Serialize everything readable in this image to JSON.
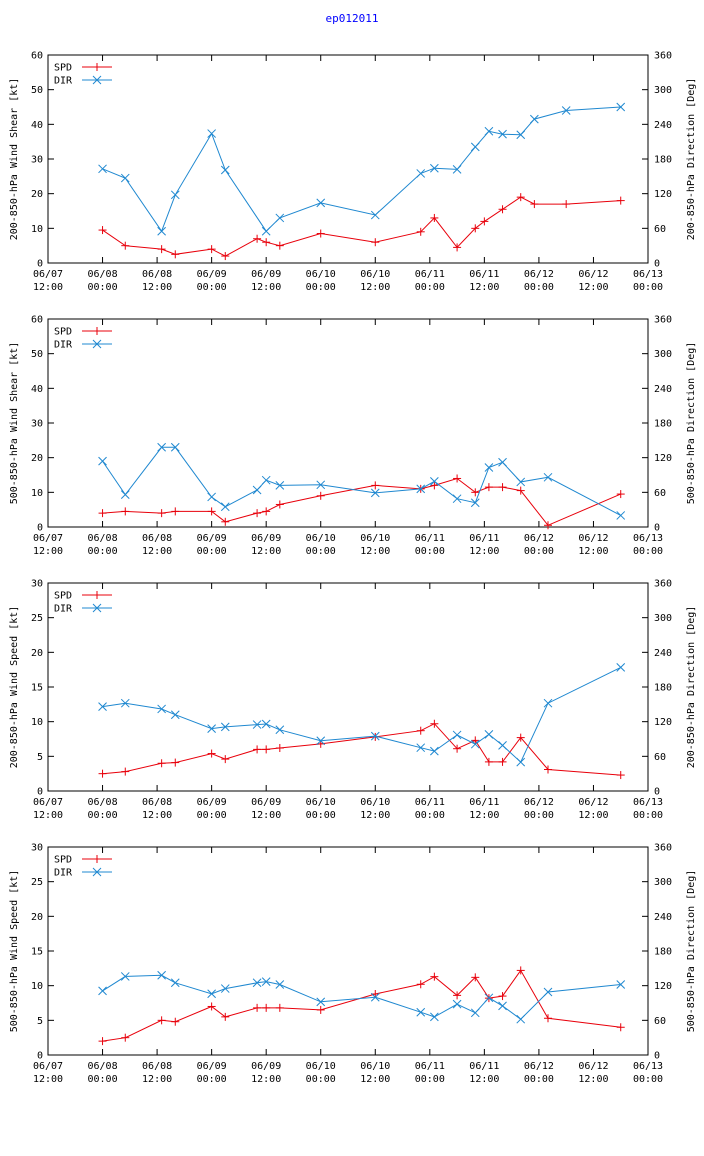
{
  "page": {
    "title": "ep012011"
  },
  "colors": {
    "spd": "#e8000b",
    "dir": "#1f88d0",
    "axis": "#000000"
  },
  "x_ticks": [
    "06/07\n12:00",
    "06/08\n00:00",
    "06/08\n12:00",
    "06/09\n00:00",
    "06/09\n12:00",
    "06/10\n00:00",
    "06/10\n12:00",
    "06/11\n00:00",
    "06/11\n12:00",
    "06/12\n00:00",
    "06/12\n12:00",
    "06/13\n00:00"
  ],
  "chart_data": [
    {
      "type": "line",
      "title": "",
      "ylabel": "200-850-hPa Wind Shear [kt]",
      "y2label": "200-850-hPa Direction [Deg]",
      "xlim": [
        0,
        132
      ],
      "ylim": [
        0,
        60
      ],
      "y2lim": [
        0,
        360
      ],
      "yticks": [
        0,
        10,
        20,
        30,
        40,
        50,
        60
      ],
      "y2ticks": [
        0,
        60,
        120,
        180,
        240,
        300,
        360
      ],
      "legend": [
        "SPD",
        "DIR"
      ],
      "series": [
        {
          "name": "SPD",
          "axis": "left",
          "x": [
            12,
            17,
            25,
            28,
            36,
            39,
            46,
            48,
            51,
            60,
            72,
            82,
            85,
            90,
            94,
            96,
            100,
            104,
            107,
            114,
            126
          ],
          "values": [
            9.5,
            5,
            4,
            2.5,
            4,
            2,
            7,
            6,
            5,
            8.5,
            6,
            9,
            13,
            4.5,
            10,
            12,
            15.5,
            19,
            17,
            17,
            18
          ]
        },
        {
          "name": "DIR",
          "axis": "right",
          "x": [
            12,
            17,
            25,
            28,
            36,
            39,
            48,
            51,
            60,
            72,
            82,
            85,
            90,
            94,
            97,
            100,
            104,
            107,
            114,
            126
          ],
          "values": [
            163,
            147,
            55,
            118,
            224,
            161,
            55,
            78,
            104,
            83,
            155,
            164,
            162,
            201,
            228,
            223,
            222,
            249,
            264,
            270
          ]
        }
      ]
    },
    {
      "type": "line",
      "title": "",
      "ylabel": "500-850-hPa Wind Shear [kt]",
      "y2label": "500-850-hPa Direction [Deg]",
      "xlim": [
        0,
        132
      ],
      "ylim": [
        0,
        60
      ],
      "y2lim": [
        0,
        360
      ],
      "yticks": [
        0,
        10,
        20,
        30,
        40,
        50,
        60
      ],
      "y2ticks": [
        0,
        60,
        120,
        180,
        240,
        300,
        360
      ],
      "legend": [
        "SPD",
        "DIR"
      ],
      "series": [
        {
          "name": "SPD",
          "axis": "left",
          "x": [
            12,
            17,
            25,
            28,
            36,
            39,
            46,
            48,
            51,
            60,
            72,
            82,
            85,
            90,
            94,
            97,
            100,
            104,
            110,
            126
          ],
          "values": [
            4,
            4.5,
            4,
            4.5,
            4.5,
            1.5,
            4,
            4.5,
            6.5,
            9,
            12,
            11,
            12,
            14,
            10,
            11.5,
            11.5,
            10.5,
            0.5,
            9.5
          ]
        },
        {
          "name": "DIR",
          "axis": "right",
          "x": [
            12,
            17,
            25,
            28,
            36,
            39,
            46,
            48,
            51,
            60,
            72,
            82,
            85,
            90,
            94,
            97,
            100,
            104,
            110,
            126
          ],
          "values": [
            114,
            56,
            138,
            138,
            52,
            35,
            64,
            81,
            72,
            73,
            59,
            66,
            79,
            49,
            42,
            103,
            112,
            78,
            86,
            20
          ]
        }
      ]
    },
    {
      "type": "line",
      "title": "",
      "ylabel": "200-850-hPa Wind Speed [kt]",
      "y2label": "200-850-hPa Direction [Deg]",
      "xlim": [
        0,
        132
      ],
      "ylim": [
        0,
        30
      ],
      "y2lim": [
        0,
        360
      ],
      "yticks": [
        0,
        5,
        10,
        15,
        20,
        25,
        30
      ],
      "y2ticks": [
        0,
        60,
        120,
        180,
        240,
        300,
        360
      ],
      "legend": [
        "SPD",
        "DIR"
      ],
      "series": [
        {
          "name": "SPD",
          "axis": "left",
          "x": [
            12,
            17,
            25,
            28,
            36,
            39,
            46,
            48,
            51,
            60,
            72,
            82,
            85,
            90,
            94,
            97,
            100,
            104,
            110,
            126
          ],
          "values": [
            2.5,
            2.8,
            4,
            4.1,
            5.4,
            4.6,
            6,
            6,
            6.2,
            6.8,
            7.8,
            8.7,
            9.7,
            6.1,
            7.3,
            4.2,
            4.2,
            7.7,
            3.1,
            2.3
          ]
        },
        {
          "name": "DIR",
          "axis": "right",
          "x": [
            12,
            17,
            25,
            28,
            36,
            39,
            46,
            48,
            51,
            60,
            72,
            82,
            85,
            90,
            94,
            97,
            100,
            104,
            110,
            126
          ],
          "values": [
            146,
            152,
            142,
            132,
            108,
            111,
            115,
            116,
            106,
            87,
            95,
            75,
            69,
            97,
            81,
            98,
            79,
            50,
            152,
            214
          ]
        }
      ]
    },
    {
      "type": "line",
      "title": "",
      "ylabel": "500-850-hPa Wind Speed [kt]",
      "y2label": "500-850-hPa Direction [Deg]",
      "xlim": [
        0,
        132
      ],
      "ylim": [
        0,
        30
      ],
      "y2lim": [
        0,
        360
      ],
      "yticks": [
        0,
        5,
        10,
        15,
        20,
        25,
        30
      ],
      "y2ticks": [
        0,
        60,
        120,
        180,
        240,
        300,
        360
      ],
      "legend": [
        "SPD",
        "DIR"
      ],
      "series": [
        {
          "name": "SPD",
          "axis": "left",
          "x": [
            12,
            17,
            25,
            28,
            36,
            39,
            46,
            48,
            51,
            60,
            72,
            82,
            85,
            90,
            94,
            97,
            100,
            104,
            110,
            126
          ],
          "values": [
            2,
            2.5,
            5,
            4.8,
            7,
            5.5,
            6.8,
            6.8,
            6.8,
            6.5,
            8.8,
            10.2,
            11.3,
            8.6,
            11.2,
            8.2,
            8.5,
            12.2,
            5.3,
            4
          ]
        },
        {
          "name": "DIR",
          "axis": "right",
          "x": [
            12,
            17,
            25,
            28,
            36,
            39,
            46,
            48,
            51,
            60,
            72,
            82,
            85,
            90,
            94,
            97,
            100,
            104,
            110,
            126
          ],
          "values": [
            111,
            136,
            138,
            125,
            106,
            115,
            125,
            127,
            122,
            92,
            100,
            74,
            66,
            88,
            73,
            99,
            85,
            62,
            109,
            122
          ]
        }
      ]
    }
  ]
}
